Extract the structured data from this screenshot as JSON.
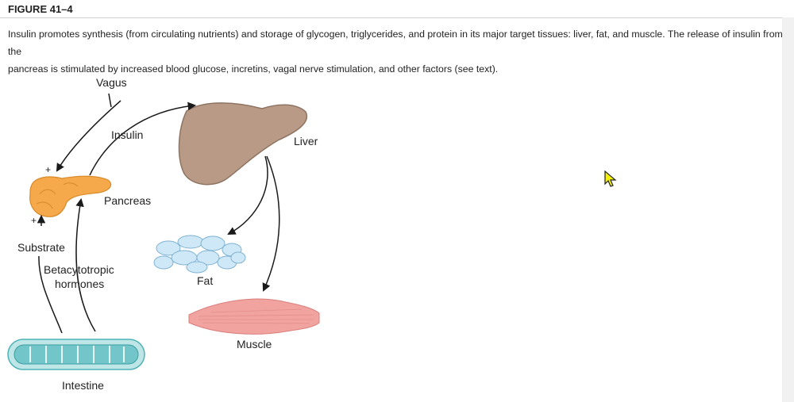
{
  "figure": {
    "title": "FIGURE 41–4",
    "caption_line1": "Insulin promotes synthesis (from circulating nutrients) and storage of glycogen, triglycerides, and protein in its major target tissues: liver, fat, and muscle. The release of insulin from the",
    "caption_line2": "pancreas is stimulated by increased blood glucose, incretins, vagal nerve stimulation, and other factors (see text)."
  },
  "diagram": {
    "labels": {
      "vagus": "Vagus",
      "insulin": "Insulin",
      "liver": "Liver",
      "pancreas": "Pancreas",
      "substrate": "Substrate",
      "betacytotropic_1": "Betacytotropic",
      "betacytotropic_2": "hormones",
      "fat": "Fat",
      "muscle": "Muscle",
      "intestine": "Intestine",
      "plus_vagus": "+",
      "plus_substrate": "+"
    },
    "colors": {
      "liver": "#b89a86",
      "pancreas": "#f5a94a",
      "fat": "#cfe8f7",
      "muscle": "#f1a3a0",
      "intestine": "#72c6c9",
      "arrow": "#1a1a1a"
    }
  },
  "cursor": {
    "icon": "mouse-pointer-icon",
    "color": "#f4f200"
  }
}
